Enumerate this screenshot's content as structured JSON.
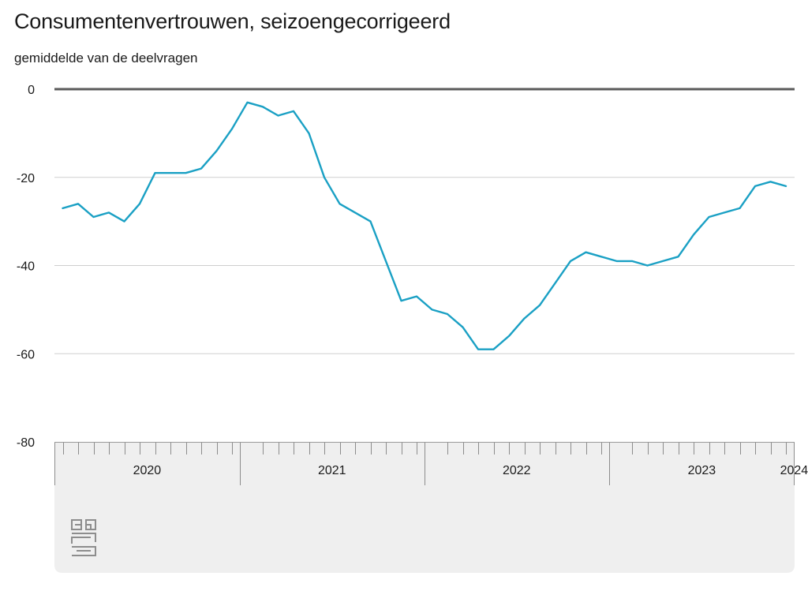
{
  "chart_data": {
    "type": "line",
    "title": "Consumentenvertrouwen, seizoengecorrigeerd",
    "subtitle": "gemiddelde van de deelvragen",
    "ylim": [
      -80,
      0
    ],
    "yticks": [
      0,
      -20,
      -40,
      -60,
      -80
    ],
    "ytick_labels": [
      "0",
      "-20",
      "-40",
      "-60",
      "-80"
    ],
    "grid": true,
    "x_start": "2020-01",
    "year_labels": [
      "2020",
      "2021",
      "2022",
      "2023",
      "2024"
    ],
    "series": [
      {
        "color": "#1aa0c4",
        "values": [
          -27,
          -26,
          -29,
          -28,
          -30,
          -26,
          -19,
          -19,
          -19,
          -18,
          -14,
          -9,
          -3,
          -4,
          -6,
          -5,
          -10,
          -20,
          -26,
          -28,
          -30,
          -39,
          -48,
          -47,
          -50,
          -51,
          -54,
          -59,
          -59,
          -56,
          -52,
          -49,
          -44,
          -39,
          -37,
          -38,
          -39,
          -39,
          -40,
          -39,
          -38,
          -33,
          -29,
          -28,
          -27,
          -22,
          -21,
          -22
        ]
      }
    ]
  },
  "colors": {
    "line": "#1aa0c4",
    "grid": "#cfcfcf",
    "zero_line": "#5a5a5a",
    "axis_panel": "#efefef"
  },
  "logo": {
    "name": "cbs"
  }
}
